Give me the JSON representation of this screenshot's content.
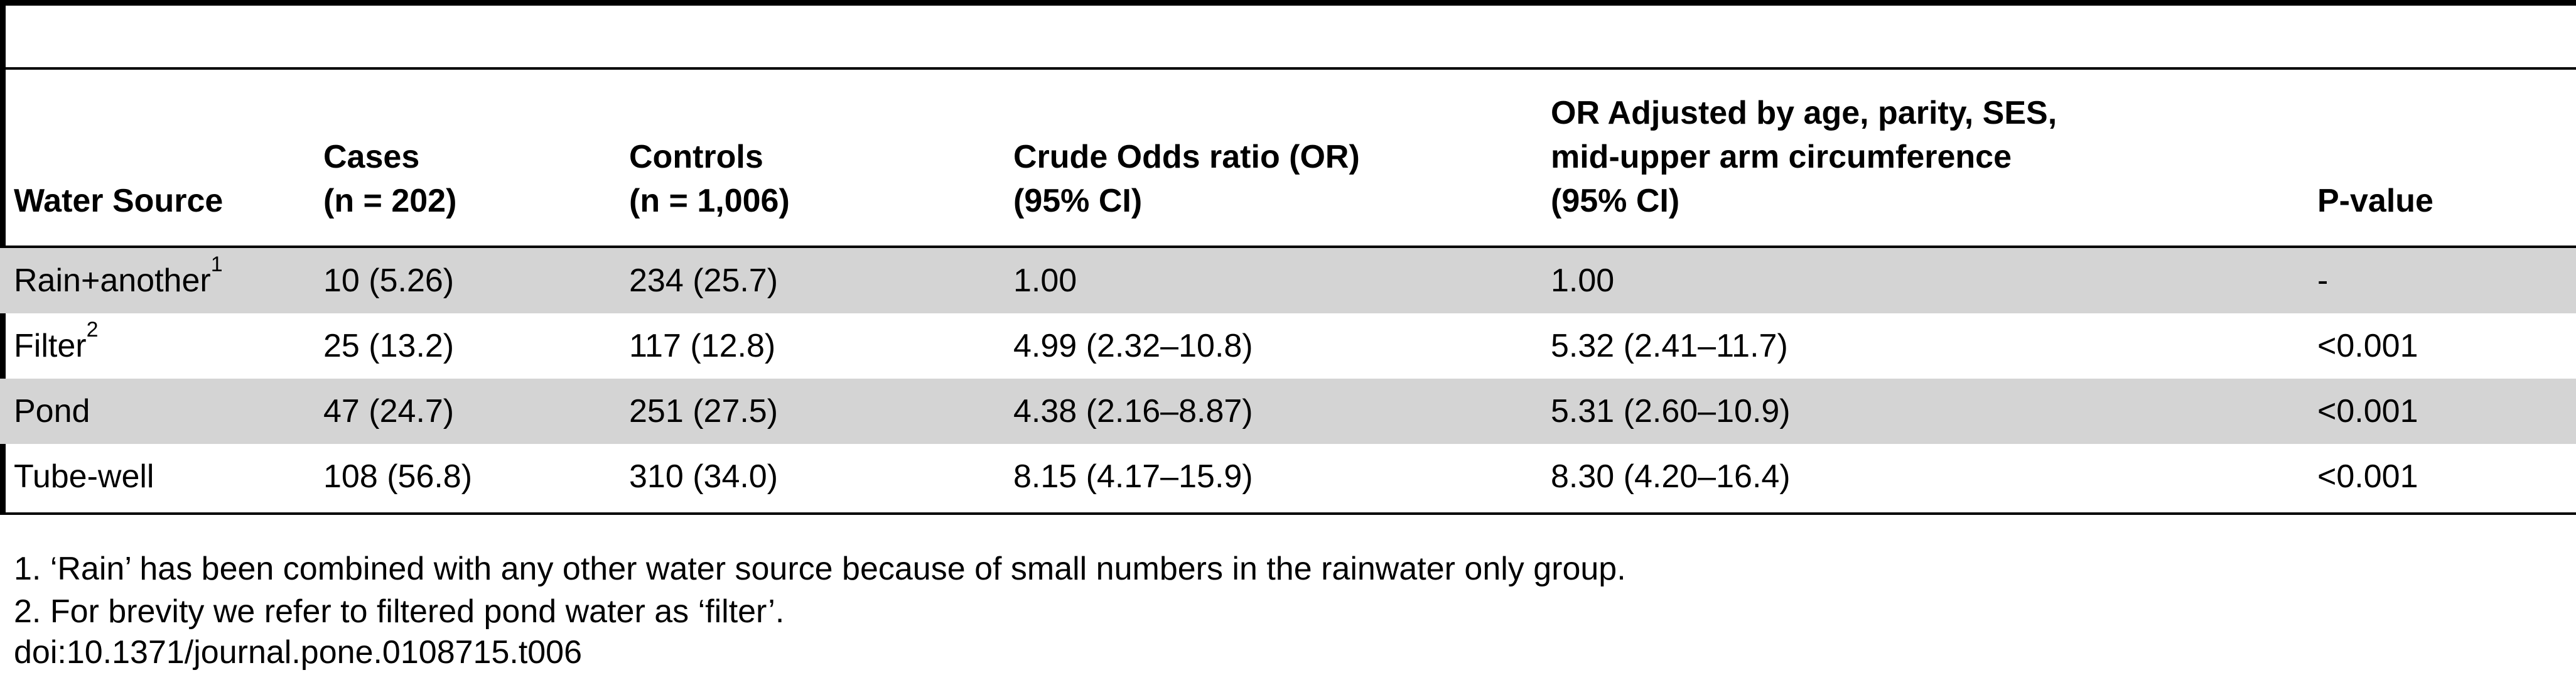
{
  "table": {
    "headers": {
      "water_source": "Water Source",
      "cases_line1": "Cases",
      "cases_line2": "(n = 202)",
      "controls_line1": "Controls",
      "controls_line2": "(n = 1,006)",
      "crude_line1": "Crude Odds ratio (OR)",
      "crude_line2": "(95% CI)",
      "adjusted_line1": "OR Adjusted by age, parity, SES,",
      "adjusted_line2": "mid-upper arm circumference",
      "adjusted_line3": "(95% CI)",
      "pvalue": "P-value"
    },
    "rows": [
      {
        "water_source": "Rain+another",
        "footnote_mark": "1",
        "cases": "10 (5.26)",
        "controls": "234 (25.7)",
        "crude_or": "1.00",
        "adjusted_or": "1.00",
        "p_value": "-",
        "shaded": true
      },
      {
        "water_source": "Filter",
        "footnote_mark": "2",
        "cases": "25 (13.2)",
        "controls": "117 (12.8)",
        "crude_or": "4.99 (2.32–10.8)",
        "adjusted_or": "5.32 (2.41–11.7)",
        "p_value": "<0.001",
        "shaded": false
      },
      {
        "water_source": "Pond",
        "footnote_mark": "",
        "cases": "47 (24.7)",
        "controls": "251 (27.5)",
        "crude_or": "4.38 (2.16–8.87)",
        "adjusted_or": "5.31 (2.60–10.9)",
        "p_value": "<0.001",
        "shaded": true
      },
      {
        "water_source": "Tube-well",
        "footnote_mark": "",
        "cases": "108 (56.8)",
        "controls": "310 (34.0)",
        "crude_or": "8.15 (4.17–15.9)",
        "adjusted_or": "8.30 (4.20–16.4)",
        "p_value": "<0.001",
        "shaded": false
      }
    ]
  },
  "footnotes": {
    "note1": "1. ‘Rain’ has been combined with any other water source because of small numbers in the rainwater only group.",
    "note2": "2. For brevity we refer to filtered pond water as ‘filter’.",
    "doi": "doi:10.1371/journal.pone.0108715.t006"
  },
  "colors": {
    "shaded_row": "#d4d4d4",
    "rule": "#000000"
  }
}
